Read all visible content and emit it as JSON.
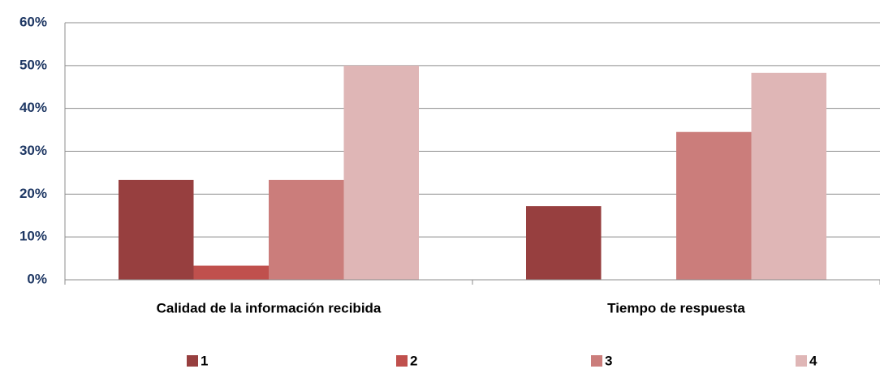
{
  "chart_data": {
    "type": "bar",
    "categories": [
      "Calidad de la información recibida",
      "Tiempo de respuesta"
    ],
    "series": [
      {
        "name": "1",
        "color": "#973f3f",
        "values": [
          23.3,
          17.2
        ]
      },
      {
        "name": "2",
        "color": "#c0504d",
        "values": [
          3.3,
          0
        ]
      },
      {
        "name": "3",
        "color": "#cb7d7b",
        "values": [
          23.3,
          34.5
        ]
      },
      {
        "name": "4",
        "color": "#dfb6b6",
        "values": [
          50,
          48.3
        ]
      }
    ],
    "ylim": [
      0,
      60
    ],
    "yticks": [
      {
        "value": 0,
        "label": "0%"
      },
      {
        "value": 10,
        "label": "10%"
      },
      {
        "value": 20,
        "label": "20%"
      },
      {
        "value": 30,
        "label": "30%"
      },
      {
        "value": 40,
        "label": "40%"
      },
      {
        "value": 50,
        "label": "50%"
      },
      {
        "value": 60,
        "label": "60%"
      }
    ],
    "grid": true,
    "legend": "bottom"
  }
}
